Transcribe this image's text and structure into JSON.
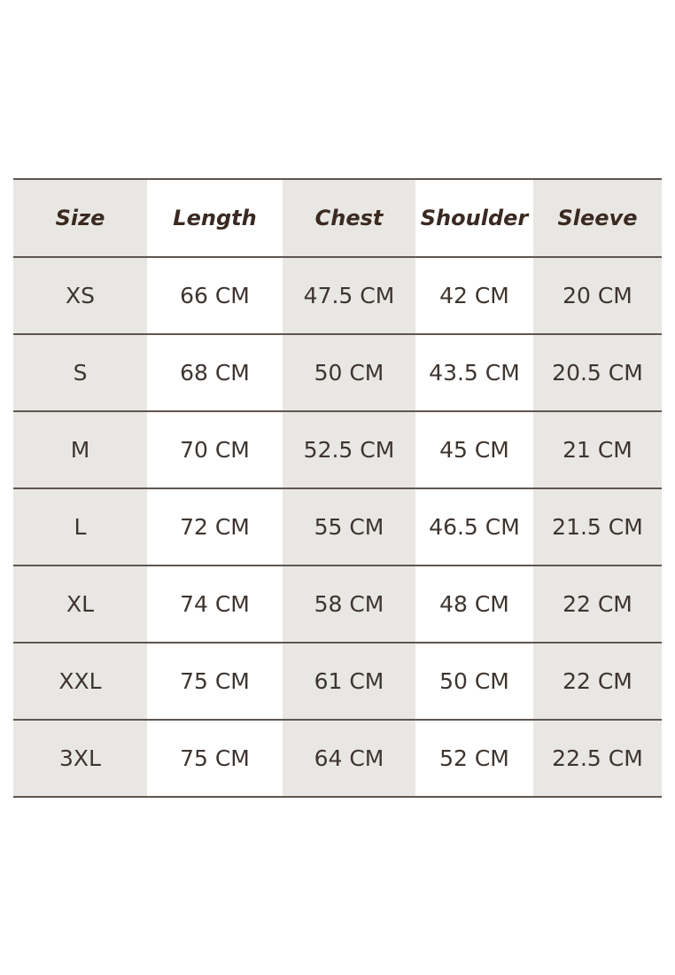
{
  "headers": [
    "Size",
    "Length",
    "Chest",
    "Shoulder",
    "Sleeve"
  ],
  "rows": [
    [
      "XS",
      "66 CM",
      "47.5 CM",
      "42 CM",
      "20 CM"
    ],
    [
      "S",
      "68 CM",
      "50 CM",
      "43.5 CM",
      "20.5 CM"
    ],
    [
      "M",
      "70 CM",
      "52.5 CM",
      "45 CM",
      "21 CM"
    ],
    [
      "L",
      "72 CM",
      "55 CM",
      "46.5 CM",
      "21.5 CM"
    ],
    [
      "XL",
      "74 CM",
      "58 CM",
      "48 CM",
      "22 CM"
    ],
    [
      "XXL",
      "75 CM",
      "61 CM",
      "50 CM",
      "22 CM"
    ],
    [
      "3XL",
      "75 CM",
      "64 CM",
      "52 CM",
      "22.5 CM"
    ]
  ],
  "colors": {
    "text": "#3b2f28",
    "shaded_column": "#e9e7e3",
    "rule": "#5e5650"
  }
}
